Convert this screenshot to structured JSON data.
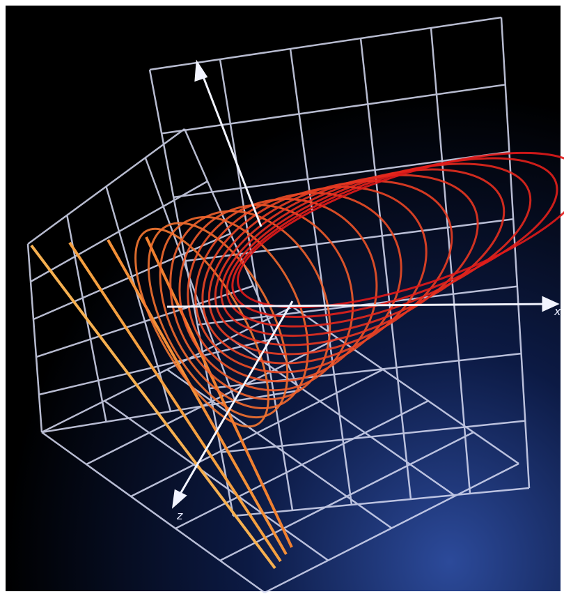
{
  "axis_labels": {
    "x": "x",
    "z": "z"
  }
}
